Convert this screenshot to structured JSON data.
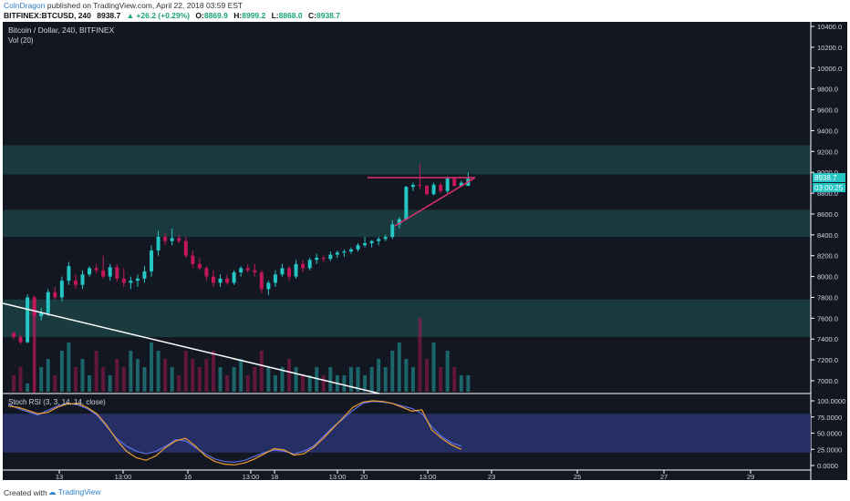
{
  "header": {
    "author": "ColnDragon",
    "published": "published on TradingView.com, April 22, 2018 03:59 EST",
    "symbol": "BITFINEX:BTCUSD, 240",
    "last": "8938.7",
    "change": "+26.2 (+0.29%)",
    "open_label": "O:",
    "open": "8869.9",
    "high_label": "H:",
    "high": "8999.2",
    "low_label": "L:",
    "low": "8868.0",
    "close_label": "C:",
    "close": "8938.7"
  },
  "legend": {
    "title": "Bitcoin / Dollar, 240, BITFINEX",
    "volume": "Vol (20)",
    "stoch": "Stoch RSI (3, 3, 14, 14, close)"
  },
  "price_badge": {
    "price": "8938.7",
    "countdown": "03:00:25"
  },
  "footer": {
    "created_with": "Created with",
    "brand": "TradingView"
  },
  "colors": {
    "background": "#131722",
    "bull": "#26c6c6",
    "bear": "#c2185b",
    "zone": "#1c4a4a",
    "trendline": "#ffffff",
    "triangle": "#e0306a",
    "stoch_k": "#5b6ee8",
    "stoch_d": "#f0a030",
    "stoch_band": "#2a3470"
  },
  "chart_data": [
    {
      "type": "candlestick",
      "title": "Bitcoin / Dollar, 240, BITFINEX",
      "y_ticks": [
        "7000.0",
        "7200.0",
        "7400.0",
        "7600.0",
        "7800.0",
        "8000.0",
        "8200.0",
        "8400.0",
        "8600.0",
        "8800.0",
        "9000.0",
        "9200.0",
        "9400.0",
        "9600.0",
        "9800.0",
        "10000.0",
        "10200.0",
        "10400.0"
      ],
      "ylim": [
        6900,
        10530
      ],
      "x_ticks": [
        "13",
        "13:00",
        "16",
        "13:00",
        "18",
        "13:00",
        "20",
        "13:00",
        "23",
        "25",
        "27",
        "29"
      ],
      "candles": [
        [
          7460,
          7470,
          7400,
          7420
        ],
        [
          7420,
          7440,
          7350,
          7370
        ],
        [
          7370,
          7830,
          7360,
          7800
        ],
        [
          7800,
          7820,
          6880,
          7620
        ],
        [
          7620,
          7700,
          7580,
          7650
        ],
        [
          7650,
          7880,
          7620,
          7850
        ],
        [
          7850,
          7900,
          7780,
          7800
        ],
        [
          7800,
          8000,
          7760,
          7960
        ],
        [
          7960,
          8140,
          7920,
          8100
        ],
        [
          7960,
          8020,
          7880,
          7920
        ],
        [
          7920,
          8060,
          7880,
          8020
        ],
        [
          8020,
          8100,
          8000,
          8080
        ],
        [
          8080,
          8120,
          8030,
          8060
        ],
        [
          8060,
          8200,
          7980,
          8000
        ],
        [
          8000,
          8120,
          7960,
          8090
        ],
        [
          8090,
          8120,
          7950,
          7980
        ],
        [
          7980,
          8080,
          7900,
          7940
        ],
        [
          7940,
          8000,
          7880,
          7960
        ],
        [
          7960,
          8020,
          7900,
          7980
        ],
        [
          7980,
          8100,
          7940,
          8050
        ],
        [
          8050,
          8300,
          8000,
          8250
        ],
        [
          8250,
          8440,
          8200,
          8380
        ],
        [
          8380,
          8420,
          8300,
          8340
        ],
        [
          8340,
          8460,
          8300,
          8370
        ],
        [
          8370,
          8400,
          8320,
          8340
        ],
        [
          8340,
          8380,
          8180,
          8200
        ],
        [
          8200,
          8250,
          8080,
          8120
        ],
        [
          8120,
          8180,
          8060,
          8080
        ],
        [
          8080,
          8100,
          7960,
          8000
        ],
        [
          8000,
          8060,
          7900,
          7940
        ],
        [
          7940,
          8020,
          7900,
          7980
        ],
        [
          7980,
          8020,
          7920,
          7940
        ],
        [
          7940,
          8060,
          7920,
          8040
        ],
        [
          8040,
          8100,
          8000,
          8080
        ],
        [
          8080,
          8120,
          8040,
          8060
        ],
        [
          8060,
          8120,
          8000,
          8040
        ],
        [
          8040,
          8060,
          7840,
          7880
        ],
        [
          7880,
          7960,
          7820,
          7940
        ],
        [
          7940,
          8060,
          7900,
          8020
        ],
        [
          8020,
          8120,
          8000,
          8080
        ],
        [
          8080,
          8100,
          7960,
          8000
        ],
        [
          8000,
          8160,
          7980,
          8120
        ],
        [
          8120,
          8160,
          8040,
          8080
        ],
        [
          8080,
          8180,
          8060,
          8160
        ],
        [
          8160,
          8220,
          8120,
          8180
        ],
        [
          8180,
          8200,
          8140,
          8170
        ],
        [
          8170,
          8240,
          8150,
          8210
        ],
        [
          8210,
          8250,
          8180,
          8230
        ],
        [
          8230,
          8260,
          8190,
          8240
        ],
        [
          8240,
          8280,
          8220,
          8260
        ],
        [
          8260,
          8320,
          8240,
          8300
        ],
        [
          8300,
          8380,
          8280,
          8320
        ],
        [
          8320,
          8350,
          8280,
          8340
        ],
        [
          8340,
          8380,
          8300,
          8360
        ],
        [
          8360,
          8400,
          8340,
          8380
        ],
        [
          8380,
          8540,
          8360,
          8500
        ],
        [
          8500,
          8570,
          8460,
          8550
        ],
        [
          8550,
          8870,
          8540,
          8860
        ],
        [
          8860,
          8900,
          8820,
          8880
        ],
        [
          8880,
          9080,
          8840,
          8870
        ],
        [
          8870,
          8880,
          8780,
          8790
        ],
        [
          8790,
          8900,
          8780,
          8880
        ],
        [
          8880,
          8900,
          8800,
          8820
        ],
        [
          8820,
          8960,
          8800,
          8940
        ],
        [
          8940,
          8950,
          8860,
          8870
        ],
        [
          8870,
          8920,
          8860,
          8900
        ],
        [
          8869.9,
          8999.2,
          8868.0,
          8938.7
        ]
      ]
    },
    {
      "type": "bar",
      "title": "Vol (20)",
      "values": [
        2,
        3,
        1,
        10,
        3,
        4,
        2,
        5,
        6,
        3,
        4,
        2,
        5,
        3,
        2,
        4,
        3,
        5,
        4,
        3,
        6,
        5,
        4,
        3,
        2,
        5,
        4,
        3,
        4,
        5,
        3,
        2,
        3,
        4,
        2,
        3,
        5,
        3,
        2,
        3,
        4,
        3,
        2,
        2,
        3,
        2,
        3,
        2,
        2,
        3,
        3,
        2,
        3,
        4,
        3,
        5,
        6,
        4,
        3,
        9,
        4,
        6,
        3,
        5,
        3,
        2,
        2
      ]
    },
    {
      "type": "line",
      "title": "Stoch RSI (3, 3, 14, 14, close)",
      "y_ticks": [
        "0.0000",
        "25.0000",
        "50.0000",
        "75.0000",
        "100.0000"
      ],
      "ylim": [
        0,
        100
      ],
      "band": [
        20,
        80
      ],
      "series": [
        {
          "color": "#5b6ee8",
          "values": [
            95,
            88,
            83,
            78,
            85,
            92,
            96,
            94,
            88,
            78,
            60,
            42,
            30,
            22,
            18,
            22,
            30,
            40,
            38,
            28,
            18,
            10,
            6,
            5,
            8,
            14,
            20,
            24,
            22,
            18,
            22,
            30,
            45,
            60,
            72,
            85,
            96,
            99,
            98,
            96,
            92,
            88,
            80,
            60,
            45,
            35,
            30
          ]
        },
        {
          "color": "#f0a030",
          "values": [
            92,
            90,
            85,
            80,
            82,
            90,
            95,
            96,
            90,
            80,
            62,
            40,
            22,
            12,
            8,
            15,
            28,
            38,
            42,
            30,
            15,
            6,
            2,
            1,
            4,
            10,
            18,
            26,
            24,
            16,
            18,
            28,
            42,
            58,
            74,
            90,
            98,
            100,
            99,
            96,
            90,
            84,
            86,
            55,
            42,
            32,
            25
          ]
        }
      ]
    }
  ]
}
